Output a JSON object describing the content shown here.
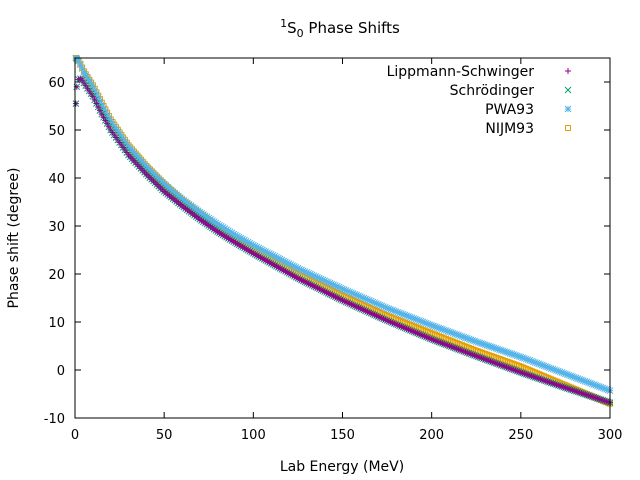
{
  "chart_data": {
    "type": "scatter",
    "title": {
      "sup": "1",
      "main": "S",
      "sub": "0",
      "rest": " Phase Shifts"
    },
    "xlabel": "Lab Energy (MeV)",
    "ylabel": "Phase shift (degree)",
    "xlim": [
      0,
      300
    ],
    "ylim": [
      -10,
      65
    ],
    "xticks": [
      0,
      50,
      100,
      150,
      200,
      250,
      300
    ],
    "yticks": [
      -10,
      0,
      10,
      20,
      30,
      40,
      50,
      60
    ],
    "legend_position": "top-right",
    "series": [
      {
        "name": "Lippmann-Schwinger",
        "marker": "plus",
        "color": "#94008c",
        "x": [
          0.5,
          1,
          2,
          3,
          4,
          5,
          10,
          15,
          20,
          30,
          40,
          50,
          60,
          70,
          80,
          90,
          100,
          125,
          150,
          175,
          200,
          225,
          250,
          275,
          300
        ],
        "y": [
          55.5,
          59.0,
          60.5,
          60.7,
          60.4,
          59.8,
          57.0,
          53.3,
          50.0,
          44.8,
          40.8,
          37.2,
          34.2,
          31.4,
          28.8,
          26.5,
          24.3,
          19.1,
          14.5,
          10.3,
          6.4,
          2.9,
          -0.5,
          -3.7,
          -6.8
        ]
      },
      {
        "name": "Schrödinger",
        "marker": "cross",
        "color": "#009e73",
        "x": [
          0.5,
          1,
          2,
          3,
          4,
          5,
          10,
          15,
          20,
          30,
          40,
          50,
          60,
          70,
          80,
          90,
          100,
          125,
          150,
          175,
          200,
          225,
          250,
          275,
          300
        ],
        "y": [
          55.5,
          59.0,
          60.5,
          60.7,
          60.4,
          59.8,
          57.0,
          53.3,
          50.0,
          44.8,
          40.8,
          37.2,
          34.2,
          31.4,
          28.8,
          26.5,
          24.3,
          19.1,
          14.5,
          10.3,
          6.4,
          2.9,
          -0.5,
          -3.7,
          -6.8
        ]
      },
      {
        "name": "PWA93",
        "marker": "star",
        "color": "#56b4e9",
        "x": [
          0.5,
          1,
          2,
          3,
          4,
          5,
          10,
          15,
          20,
          30,
          40,
          50,
          60,
          70,
          80,
          90,
          100,
          125,
          150,
          175,
          200,
          225,
          250,
          275,
          300
        ],
        "y": [
          65.0,
          64.8,
          64.4,
          63.6,
          62.8,
          62.0,
          59.0,
          55.3,
          51.8,
          46.5,
          42.3,
          38.7,
          35.6,
          32.9,
          30.4,
          28.1,
          26.0,
          21.2,
          16.9,
          12.9,
          9.3,
          5.9,
          2.7,
          -0.8,
          -4.3
        ]
      },
      {
        "name": "NIJM93",
        "marker": "box",
        "color": "#e69f00",
        "x": [
          0.5,
          1,
          2,
          3,
          4,
          5,
          10,
          15,
          20,
          30,
          40,
          50,
          60,
          70,
          80,
          90,
          100,
          125,
          150,
          175,
          200,
          225,
          250,
          275,
          300
        ],
        "y": [
          65.0,
          64.9,
          64.5,
          63.8,
          63.0,
          62.2,
          59.3,
          55.7,
          52.2,
          46.8,
          42.5,
          38.8,
          35.5,
          32.6,
          29.9,
          27.4,
          25.1,
          20.0,
          15.5,
          11.3,
          7.6,
          4.0,
          0.7,
          -3.2,
          -7.0
        ]
      }
    ]
  }
}
